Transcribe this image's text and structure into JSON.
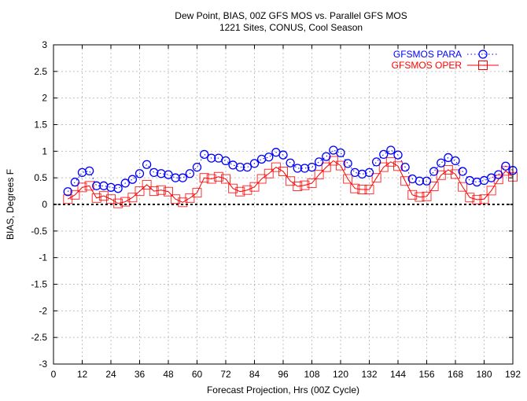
{
  "chart_data": {
    "type": "line",
    "title": "Dew Point, BIAS, 00Z GFS MOS vs. Parallel GFS MOS",
    "subtitle": "1221 Sites, CONUS, Cool Season",
    "xlabel": "Forecast Projection, Hrs (00Z Cycle)",
    "ylabel": "BIAS, Degrees F",
    "xlim": [
      0,
      192
    ],
    "ylim": [
      -3,
      3
    ],
    "xticks": [
      0,
      12,
      24,
      36,
      48,
      60,
      72,
      84,
      96,
      108,
      120,
      132,
      144,
      156,
      168,
      180,
      192
    ],
    "yticks": [
      -3,
      -2.5,
      -2,
      -1.5,
      -1,
      -0.5,
      0,
      0.5,
      1,
      1.5,
      2,
      2.5,
      3
    ],
    "grid": true,
    "legend_position": "top-right",
    "x": [
      6,
      9,
      12,
      15,
      18,
      21,
      24,
      27,
      30,
      33,
      36,
      39,
      42,
      45,
      48,
      51,
      54,
      57,
      60,
      63,
      66,
      69,
      72,
      75,
      78,
      81,
      84,
      87,
      90,
      93,
      96,
      99,
      102,
      105,
      108,
      111,
      114,
      117,
      120,
      123,
      126,
      129,
      132,
      135,
      138,
      141,
      144,
      147,
      150,
      153,
      156,
      159,
      162,
      165,
      168,
      171,
      174,
      177,
      180,
      183,
      186,
      189,
      192
    ],
    "series": [
      {
        "name": "GFSMOS PARA",
        "color": "#0000ff",
        "marker": "circle",
        "values": [
          0.24,
          0.42,
          0.6,
          0.63,
          0.35,
          0.35,
          0.32,
          0.3,
          0.4,
          0.47,
          0.58,
          0.75,
          0.6,
          0.58,
          0.56,
          0.5,
          0.5,
          0.58,
          0.7,
          0.94,
          0.87,
          0.87,
          0.82,
          0.74,
          0.7,
          0.7,
          0.77,
          0.85,
          0.89,
          0.98,
          0.93,
          0.78,
          0.68,
          0.68,
          0.7,
          0.8,
          0.9,
          1.02,
          0.97,
          0.77,
          0.6,
          0.57,
          0.6,
          0.8,
          0.94,
          1.02,
          0.93,
          0.7,
          0.48,
          0.44,
          0.44,
          0.62,
          0.78,
          0.88,
          0.82,
          0.62,
          0.45,
          0.42,
          0.45,
          0.5,
          0.56,
          0.72,
          0.64
        ]
      },
      {
        "name": "GFSMOS OPER",
        "color": "#ff0000",
        "marker": "square",
        "values": [
          0.1,
          0.18,
          0.32,
          0.35,
          0.12,
          0.16,
          0.1,
          0.02,
          0.05,
          0.13,
          0.25,
          0.37,
          0.25,
          0.27,
          0.24,
          0.1,
          0.04,
          0.12,
          0.22,
          0.5,
          0.48,
          0.52,
          0.48,
          0.3,
          0.24,
          0.27,
          0.33,
          0.48,
          0.58,
          0.7,
          0.62,
          0.44,
          0.34,
          0.36,
          0.4,
          0.56,
          0.7,
          0.82,
          0.73,
          0.48,
          0.3,
          0.28,
          0.28,
          0.5,
          0.7,
          0.8,
          0.72,
          0.44,
          0.18,
          0.14,
          0.15,
          0.34,
          0.55,
          0.65,
          0.57,
          0.33,
          0.13,
          0.09,
          0.1,
          0.26,
          0.47,
          0.63,
          0.52
        ]
      }
    ]
  }
}
